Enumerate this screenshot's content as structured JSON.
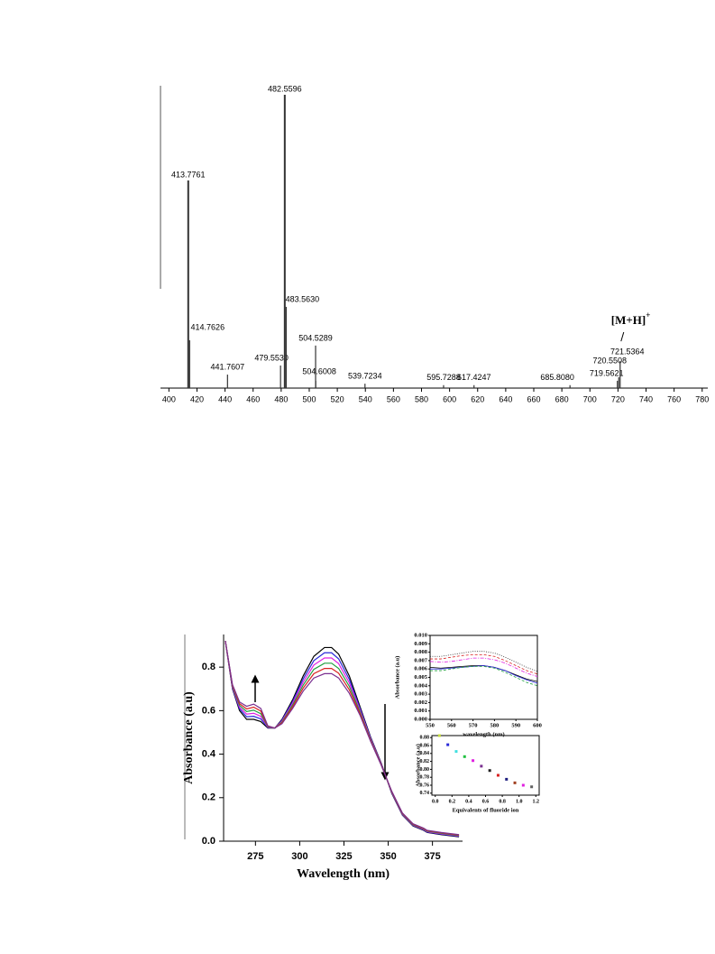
{
  "chart_data": [
    {
      "type": "stem",
      "x": [
        413.7761,
        414.7626,
        441.7607,
        479.553,
        482.5596,
        483.563,
        504.5289,
        504.6008,
        539.7234,
        595.7288,
        617.4247,
        685.808,
        719.5621,
        720.5508,
        721.5364
      ],
      "x_labels": [
        "413.7761",
        "414.7626",
        "441.7607",
        "479.5530",
        "482.5596",
        "483.5630",
        "504.5289",
        "504.6008",
        "539.7234",
        "595.7288",
        "617.4247",
        "685.8080",
        "719.5621",
        "720.5508",
        "721.5364"
      ],
      "values": [
        70.8,
        16.3,
        4.6,
        7.7,
        100,
        27.7,
        14.5,
        2.5,
        1.5,
        1,
        1,
        1,
        2.5,
        3.7,
        9.2
      ],
      "color": "#333333",
      "xlim": [
        394,
        784
      ],
      "ylim": [
        0,
        100
      ],
      "xticks": [
        400,
        420,
        440,
        460,
        480,
        500,
        520,
        540,
        560,
        580,
        600,
        620,
        640,
        660,
        680,
        700,
        720,
        740,
        760,
        780
      ],
      "annotation": {
        "text": "[M+H]",
        "superscript": "+"
      }
    },
    {
      "type": "line",
      "xlabel": "Wavelength (nm)",
      "ylabel": "Absorbance (a.u)",
      "x": [
        258,
        262,
        266,
        270,
        274,
        278,
        282,
        286,
        290,
        296,
        302,
        308,
        314,
        318,
        322,
        328,
        334,
        340,
        346,
        352,
        358,
        364,
        370,
        372,
        380,
        390
      ],
      "series": [
        {
          "color": "#000000",
          "values": [
            0.92,
            0.7,
            0.6,
            0.56,
            0.56,
            0.55,
            0.52,
            0.52,
            0.56,
            0.65,
            0.76,
            0.85,
            0.89,
            0.89,
            0.86,
            0.76,
            0.62,
            0.48,
            0.36,
            0.22,
            0.12,
            0.07,
            0.05,
            0.04,
            0.03,
            0.02
          ]
        },
        {
          "color": "#2a2ad8",
          "values": [
            0.92,
            0.704,
            0.608,
            0.572,
            0.574,
            0.562,
            0.522,
            0.52,
            0.556,
            0.642,
            0.746,
            0.83,
            0.866,
            0.866,
            0.838,
            0.744,
            0.612,
            0.476,
            0.358,
            0.222,
            0.122,
            0.072,
            0.052,
            0.042,
            0.032,
            0.022
          ]
        },
        {
          "color": "#e020e0",
          "values": [
            0.92,
            0.708,
            0.616,
            0.584,
            0.588,
            0.574,
            0.524,
            0.52,
            0.552,
            0.634,
            0.732,
            0.81,
            0.842,
            0.842,
            0.816,
            0.728,
            0.604,
            0.472,
            0.356,
            0.224,
            0.124,
            0.074,
            0.054,
            0.044,
            0.034,
            0.024
          ]
        },
        {
          "color": "#20a040",
          "values": [
            0.92,
            0.712,
            0.624,
            0.596,
            0.602,
            0.586,
            0.526,
            0.52,
            0.548,
            0.626,
            0.718,
            0.79,
            0.818,
            0.818,
            0.794,
            0.712,
            0.596,
            0.468,
            0.354,
            0.226,
            0.126,
            0.076,
            0.056,
            0.046,
            0.036,
            0.026
          ]
        },
        {
          "color": "#d82020",
          "values": [
            0.92,
            0.716,
            0.632,
            0.608,
            0.616,
            0.598,
            0.528,
            0.52,
            0.544,
            0.618,
            0.704,
            0.77,
            0.794,
            0.794,
            0.772,
            0.696,
            0.588,
            0.464,
            0.352,
            0.228,
            0.128,
            0.078,
            0.058,
            0.048,
            0.038,
            0.028
          ]
        },
        {
          "color": "#7a3090",
          "values": [
            0.92,
            0.72,
            0.64,
            0.62,
            0.63,
            0.61,
            0.53,
            0.52,
            0.54,
            0.61,
            0.69,
            0.75,
            0.77,
            0.77,
            0.75,
            0.68,
            0.58,
            0.46,
            0.35,
            0.23,
            0.13,
            0.08,
            0.06,
            0.05,
            0.04,
            0.03
          ]
        }
      ],
      "xlim": [
        257,
        392
      ],
      "ylim": [
        0,
        0.95
      ],
      "xticks": [
        275,
        300,
        325,
        350,
        375
      ],
      "yticks": [
        {
          "value": 0,
          "label": "0.0"
        },
        0.2,
        0.4,
        0.6,
        0.8
      ]
    },
    {
      "type": "line",
      "xlabel": "wavelength (nm)",
      "ylabel": "Absorbance (a.u)",
      "x": [
        550,
        555,
        560,
        565,
        570,
        575,
        580,
        585,
        590,
        595,
        600
      ],
      "series": [
        {
          "color": "#000000",
          "style": "solid",
          "values": [
            0.0062,
            0.0061,
            0.0062,
            0.0063,
            0.0064,
            0.0064,
            0.0062,
            0.0058,
            0.0053,
            0.0048,
            0.0045
          ]
        },
        {
          "color": "#d82020",
          "style": "dashed",
          "values": [
            0.0072,
            0.0072,
            0.0074,
            0.0076,
            0.0077,
            0.0077,
            0.0075,
            0.007,
            0.0064,
            0.0058,
            0.0054
          ]
        },
        {
          "color": "#333333",
          "style": "dotted",
          "values": [
            0.0075,
            0.0075,
            0.0077,
            0.0079,
            0.0081,
            0.0081,
            0.0079,
            0.0074,
            0.0068,
            0.0062,
            0.0057
          ]
        },
        {
          "color": "#e020e0",
          "style": "dashdot",
          "values": [
            0.0069,
            0.0068,
            0.0069,
            0.0071,
            0.0073,
            0.0073,
            0.0071,
            0.0067,
            0.0061,
            0.0055,
            0.0051
          ]
        },
        {
          "color": "#2a2ad8",
          "style": "solid",
          "values": [
            0.006,
            0.006,
            0.0061,
            0.0062,
            0.0063,
            0.0064,
            0.0062,
            0.0058,
            0.0052,
            0.0047,
            0.0043
          ]
        },
        {
          "color": "#20a040",
          "style": "dashed",
          "values": [
            0.0058,
            0.0058,
            0.006,
            0.0062,
            0.0063,
            0.0063,
            0.0061,
            0.0056,
            0.005,
            0.0044,
            0.004
          ]
        }
      ],
      "xlim": [
        550,
        600
      ],
      "ylim": [
        0,
        0.01
      ],
      "xticks": [
        550,
        560,
        570,
        580,
        590,
        600
      ],
      "yticks": [
        {
          "value": 0,
          "label": "0.000"
        },
        0.001,
        0.002,
        0.003,
        0.004,
        0.005,
        0.006,
        0.007,
        0.008,
        0.009,
        {
          "value": 0.01,
          "label": "0.010"
        }
      ]
    },
    {
      "type": "scatter",
      "xlabel": "Equivalents of fluoride ion",
      "ylabel": "Absorbance (a.u)",
      "x": [
        0.05,
        0.15,
        0.25,
        0.35,
        0.45,
        0.55,
        0.65,
        0.75,
        0.85,
        0.95,
        1.05,
        1.15
      ],
      "values": [
        0.885,
        0.862,
        0.845,
        0.832,
        0.822,
        0.808,
        0.797,
        0.785,
        0.775,
        0.766,
        0.76,
        0.756
      ],
      "colors": [
        "#c8e040",
        "#2a2ad8",
        "#40e0e0",
        "#20c040",
        "#e020e0",
        "#7a3090",
        "#202020",
        "#d82020",
        "#202080",
        "#a04020",
        "#e020e0",
        "#606060"
      ],
      "xlim": [
        -0.04,
        1.24
      ],
      "ylim": [
        0.735,
        0.885
      ],
      "xticks": [
        {
          "value": 0,
          "label": "0.0"
        },
        0.2,
        0.4,
        0.6,
        0.8,
        {
          "value": 1,
          "label": "1.0"
        },
        1.2
      ],
      "yticks": [
        0.74,
        0.76,
        0.78,
        {
          "value": 0.8,
          "label": "0.80"
        },
        0.82,
        0.84,
        0.86,
        0.88
      ]
    }
  ]
}
